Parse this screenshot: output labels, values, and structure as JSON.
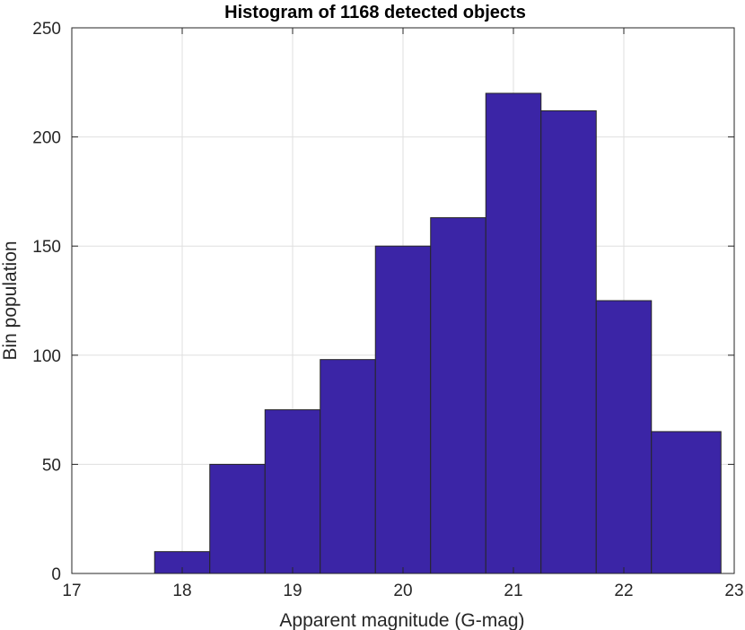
{
  "chart_data": {
    "type": "bar",
    "title": "Histogram of 1168 detected objects",
    "xlabel": "Apparent magnitude (G-mag)",
    "ylabel": "Bin population",
    "xlim": [
      17,
      23
    ],
    "ylim": [
      0,
      250
    ],
    "xticks": [
      17,
      18,
      19,
      20,
      21,
      22,
      23
    ],
    "yticks": [
      0,
      50,
      100,
      150,
      200,
      250
    ],
    "grid": true,
    "bar_color": "#3b25a6",
    "bins": [
      {
        "x0": 17.25,
        "x1": 17.75,
        "value": 0
      },
      {
        "x0": 17.75,
        "x1": 18.25,
        "value": 10
      },
      {
        "x0": 18.25,
        "x1": 18.75,
        "value": 50
      },
      {
        "x0": 18.75,
        "x1": 19.25,
        "value": 75
      },
      {
        "x0": 19.25,
        "x1": 19.75,
        "value": 98
      },
      {
        "x0": 19.75,
        "x1": 20.25,
        "value": 150
      },
      {
        "x0": 20.25,
        "x1": 20.75,
        "value": 163
      },
      {
        "x0": 20.75,
        "x1": 21.25,
        "value": 220
      },
      {
        "x0": 21.25,
        "x1": 21.75,
        "value": 212
      },
      {
        "x0": 21.75,
        "x1": 22.25,
        "value": 125
      },
      {
        "x0": 22.25,
        "x1": 22.88,
        "value": 65
      }
    ]
  }
}
